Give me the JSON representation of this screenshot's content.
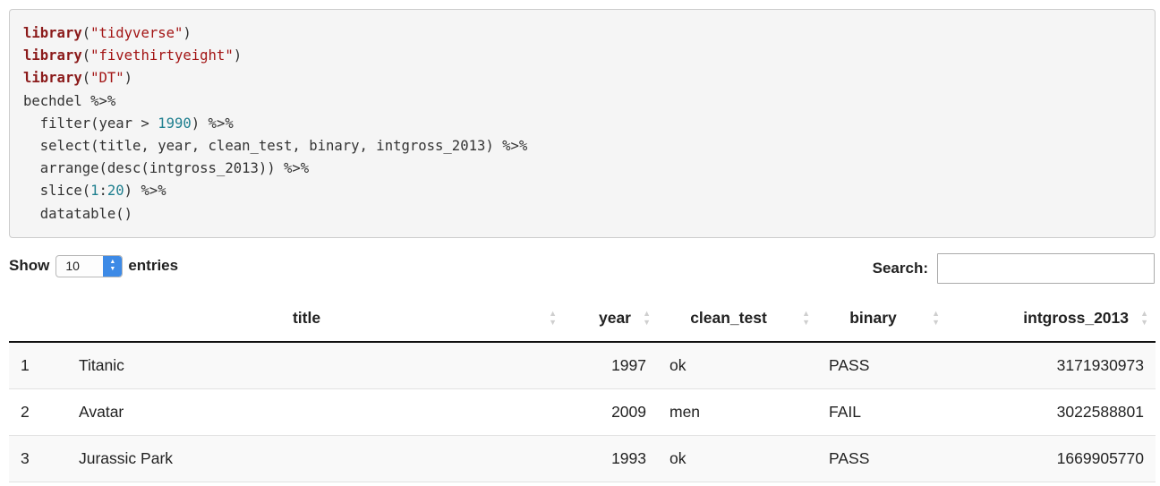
{
  "code": {
    "line1": {
      "kw": "library",
      "open": "(",
      "arg": "\"tidyverse\"",
      "close": ")"
    },
    "line2": {
      "kw": "library",
      "open": "(",
      "arg": "\"fivethirtyeight\"",
      "close": ")"
    },
    "line3": {
      "kw": "library",
      "open": "(",
      "arg": "\"DT\"",
      "close": ")"
    },
    "line4": "bechdel %>%",
    "line5": {
      "pre": "  filter(year > ",
      "num": "1990",
      "post": ") %>%"
    },
    "line6": "  select(title, year, clean_test, binary, intgross_2013) %>%",
    "line7": "  arrange(desc(intgross_2013)) %>%",
    "line8": {
      "pre": "  slice(",
      "num1": "1",
      "colon": ":",
      "num2": "20",
      "post": ") %>%"
    },
    "line9": "  datatable()"
  },
  "length_control": {
    "show_label": "Show",
    "value": "10",
    "entries_label": "entries"
  },
  "search": {
    "label": "Search:",
    "value": ""
  },
  "table": {
    "headers": {
      "title": "title",
      "year": "year",
      "clean_test": "clean_test",
      "binary": "binary",
      "intgross_2013": "intgross_2013"
    },
    "rows": [
      {
        "index": "1",
        "title": "Titanic",
        "year": "1997",
        "clean_test": "ok",
        "binary": "PASS",
        "intgross_2013": "3171930973"
      },
      {
        "index": "2",
        "title": "Avatar",
        "year": "2009",
        "clean_test": "men",
        "binary": "FAIL",
        "intgross_2013": "3022588801"
      },
      {
        "index": "3",
        "title": "Jurassic Park",
        "year": "1993",
        "clean_test": "ok",
        "binary": "PASS",
        "intgross_2013": "1669905770"
      }
    ]
  },
  "icons": {
    "sort": "sort-both-icon",
    "select_arrows": "select-arrows-icon"
  }
}
